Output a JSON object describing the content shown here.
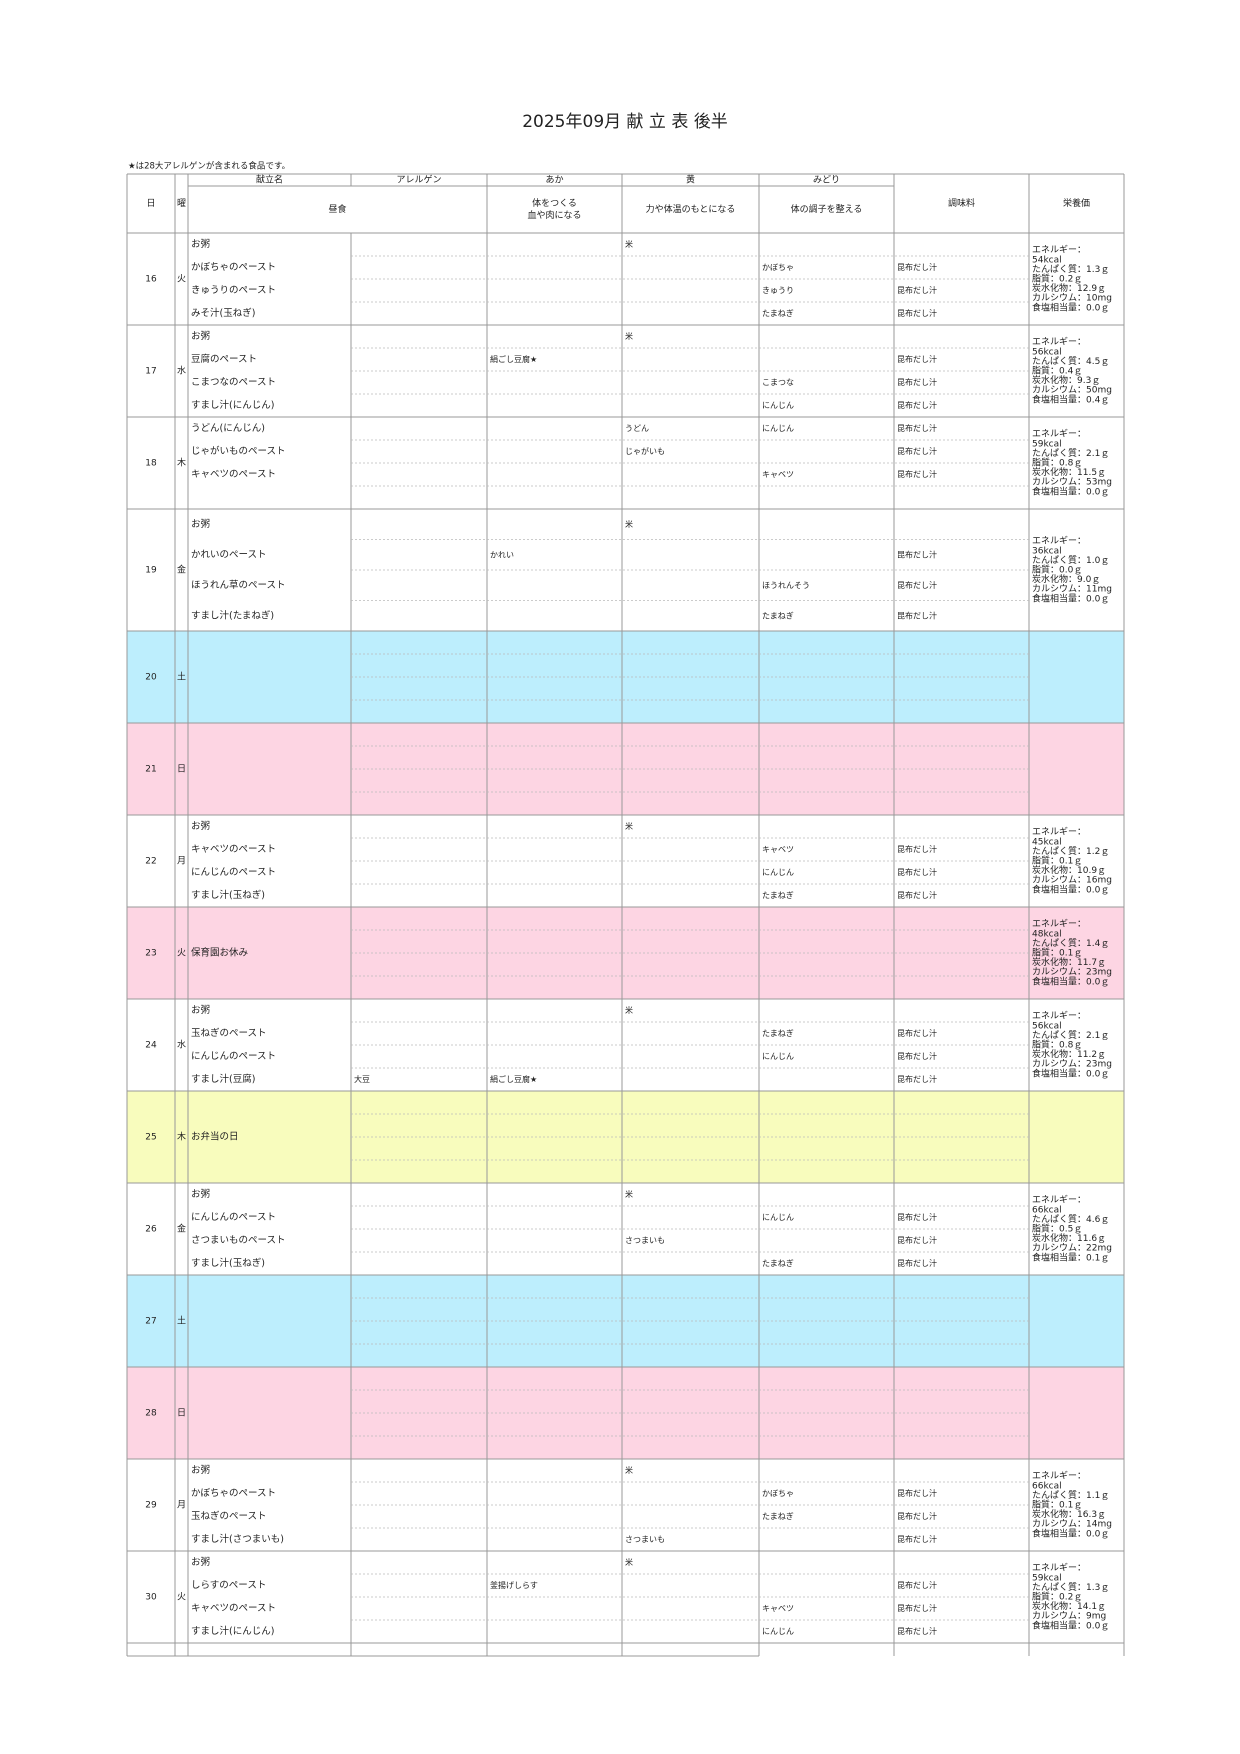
{
  "title": "2025年09月 献 立 表 後半",
  "note": "★は28大アレルゲンが含まれる食品です。",
  "header": {
    "day": "日",
    "dow": "曜",
    "menu": "献立名",
    "allergen": "アレルゲン",
    "aka": "あか",
    "ki": "黄",
    "midori": "みどり",
    "lunch": "昼食",
    "aka_desc": [
      "体をつくる",
      "血や肉になる"
    ],
    "ki_desc": "力や体温のもとになる",
    "midori_desc": "体の調子を整える",
    "seasoning": "調味料",
    "nutrition": "栄養価"
  },
  "days": [
    {
      "day": "16",
      "dow": "火",
      "rows": [
        {
          "name": "お粥",
          "ki": "米"
        },
        {
          "name": "かぼちゃのペースト",
          "midori": "かぼちゃ",
          "seasoning": "昆布だし汁"
        },
        {
          "name": "きゅうりのペースト",
          "midori": "きゅうり",
          "seasoning": "昆布だし汁"
        },
        {
          "name": "みそ汁(玉ねぎ)",
          "midori": "たまねぎ",
          "seasoning": "昆布だし汁"
        }
      ],
      "nutrition": [
        "エネルギー：",
        "54kcal",
        "たんぱく質：1.3ｇ",
        "脂質：0.2ｇ",
        "炭水化物：12.9ｇ",
        "カルシウム：10mg",
        "食塩相当量：0.0ｇ"
      ]
    },
    {
      "day": "17",
      "dow": "水",
      "rows": [
        {
          "name": "お粥",
          "ki": "米"
        },
        {
          "name": "豆腐のペースト",
          "aka": "絹ごし豆腐★",
          "seasoning": "昆布だし汁"
        },
        {
          "name": "こまつなのペースト",
          "midori": "こまつな",
          "seasoning": "昆布だし汁"
        },
        {
          "name": "すまし汁(にんじん)",
          "midori": "にんじん",
          "seasoning": "昆布だし汁"
        }
      ],
      "nutrition": [
        "エネルギー：",
        "56kcal",
        "たんぱく質：4.5ｇ",
        "脂質：0.4ｇ",
        "炭水化物：9.3ｇ",
        "カルシウム：50mg",
        "食塩相当量：0.4ｇ"
      ]
    },
    {
      "day": "18",
      "dow": "木",
      "rows": [
        {
          "name": "うどん(にんじん)",
          "ki": "うどん",
          "midori": "にんじん",
          "seasoning": "昆布だし汁"
        },
        {
          "name": "じゃがいものペースト",
          "ki": "じゃがいも",
          "seasoning": "昆布だし汁"
        },
        {
          "name": "キャベツのペースト",
          "midori": "キャベツ",
          "seasoning": "昆布だし汁"
        }
      ],
      "nutrition": [
        "エネルギー：",
        "59kcal",
        "たんぱく質：2.1ｇ",
        "脂質：0.8ｇ",
        "炭水化物：11.5ｇ",
        "カルシウム：53mg",
        "食塩相当量：0.0ｇ"
      ]
    },
    {
      "day": "19",
      "dow": "金",
      "rows": [
        {
          "name": "お粥",
          "ki": "米"
        },
        {
          "name": "かれいのペースト",
          "aka": "かれい",
          "seasoning": "昆布だし汁"
        },
        {
          "name": "ほうれん草のペースト",
          "midori": "ほうれんそう",
          "seasoning": "昆布だし汁"
        },
        {
          "name": "すまし汁(たまねぎ)",
          "midori": "たまねぎ",
          "seasoning": "昆布だし汁"
        }
      ],
      "nutrition": [
        "エネルギー：",
        "36kcal",
        "たんぱく質：1.0ｇ",
        "脂質：0.0ｇ",
        "炭水化物：9.0ｇ",
        "カルシウム：11mg",
        "食塩相当量：0.0ｇ"
      ]
    },
    {
      "day": "20",
      "dow": "土",
      "rows": []
    },
    {
      "day": "21",
      "dow": "日",
      "rows": []
    },
    {
      "day": "22",
      "dow": "月",
      "rows": [
        {
          "name": "お粥",
          "ki": "米"
        },
        {
          "name": "キャベツのペースト",
          "midori": "キャベツ",
          "seasoning": "昆布だし汁"
        },
        {
          "name": "にんじんのペースト",
          "midori": "にんじん",
          "seasoning": "昆布だし汁"
        },
        {
          "name": "すまし汁(玉ねぎ)",
          "midori": "たまねぎ",
          "seasoning": "昆布だし汁"
        }
      ],
      "nutrition": [
        "エネルギー：",
        "45kcal",
        "たんぱく質：1.2ｇ",
        "脂質：0.1ｇ",
        "炭水化物：10.9ｇ",
        "カルシウム：16mg",
        "食塩相当量：0.0ｇ"
      ]
    },
    {
      "day": "23",
      "dow": "火",
      "rows": [
        {
          "name": "保育園お休み"
        }
      ],
      "nutrition": [
        "エネルギー：",
        "48kcal",
        "たんぱく質：1.4ｇ",
        "脂質：0.1ｇ",
        "炭水化物：11.7ｇ",
        "カルシウム：23mg",
        "食塩相当量：0.0ｇ"
      ]
    },
    {
      "day": "24",
      "dow": "水",
      "rows": [
        {
          "name": "お粥",
          "ki": "米"
        },
        {
          "name": "玉ねぎのペースト",
          "midori": "たまねぎ",
          "seasoning": "昆布だし汁"
        },
        {
          "name": "にんじんのペースト",
          "midori": "にんじん",
          "seasoning": "昆布だし汁"
        },
        {
          "name": "すまし汁(豆腐)",
          "allergen": "大豆",
          "aka": "絹ごし豆腐★",
          "seasoning": "昆布だし汁"
        }
      ],
      "nutrition": [
        "エネルギー：",
        "56kcal",
        "たんぱく質：2.1ｇ",
        "脂質：0.8ｇ",
        "炭水化物：11.2ｇ",
        "カルシウム：23mg",
        "食塩相当量：0.0ｇ"
      ]
    },
    {
      "day": "25",
      "dow": "木",
      "rows": [
        {
          "name": "お弁当の日"
        }
      ]
    },
    {
      "day": "26",
      "dow": "金",
      "rows": [
        {
          "name": "お粥",
          "ki": "米"
        },
        {
          "name": "にんじんのペースト",
          "midori": "にんじん",
          "seasoning": "昆布だし汁"
        },
        {
          "name": "さつまいものペースト",
          "ki": "さつまいも",
          "seasoning": "昆布だし汁"
        },
        {
          "name": "すまし汁(玉ねぎ)",
          "midori": "たまねぎ",
          "seasoning": "昆布だし汁"
        }
      ],
      "nutrition": [
        "エネルギー：",
        "66kcal",
        "たんぱく質：4.6ｇ",
        "脂質：0.5ｇ",
        "炭水化物：11.6ｇ",
        "カルシウム：22mg",
        "食塩相当量：0.1ｇ"
      ]
    },
    {
      "day": "27",
      "dow": "土",
      "rows": []
    },
    {
      "day": "28",
      "dow": "日",
      "rows": []
    },
    {
      "day": "29",
      "dow": "月",
      "rows": [
        {
          "name": "お粥",
          "ki": "米"
        },
        {
          "name": "かぼちゃのペースト",
          "midori": "かぼちゃ",
          "seasoning": "昆布だし汁"
        },
        {
          "name": "玉ねぎのペースト",
          "midori": "たまねぎ",
          "seasoning": "昆布だし汁"
        },
        {
          "name": "すまし汁(さつまいも)",
          "ki": "さつまいも",
          "seasoning": "昆布だし汁"
        }
      ],
      "nutrition": [
        "エネルギー：",
        "66kcal",
        "たんぱく質：1.1ｇ",
        "脂質：0.1ｇ",
        "炭水化物：16.3ｇ",
        "カルシウム：14mg",
        "食塩相当量：0.0ｇ"
      ]
    },
    {
      "day": "30",
      "dow": "火",
      "rows": [
        {
          "name": "お粥",
          "ki": "米"
        },
        {
          "name": "しらすのペースト",
          "aka": "釜揚げしらす",
          "seasoning": "昆布だし汁"
        },
        {
          "name": "キャベツのペースト",
          "midori": "キャベツ",
          "seasoning": "昆布だし汁"
        },
        {
          "name": "すまし汁(にんじん)",
          "midori": "にんじん",
          "seasoning": "昆布だし汁"
        }
      ],
      "nutrition": [
        "エネルギー：",
        "59kcal",
        "たんぱく質：1.3ｇ",
        "脂質：0.2ｇ",
        "炭水化物：14.1ｇ",
        "カルシウム：9mg",
        "食塩相当量：0.0ｇ"
      ]
    }
  ]
}
